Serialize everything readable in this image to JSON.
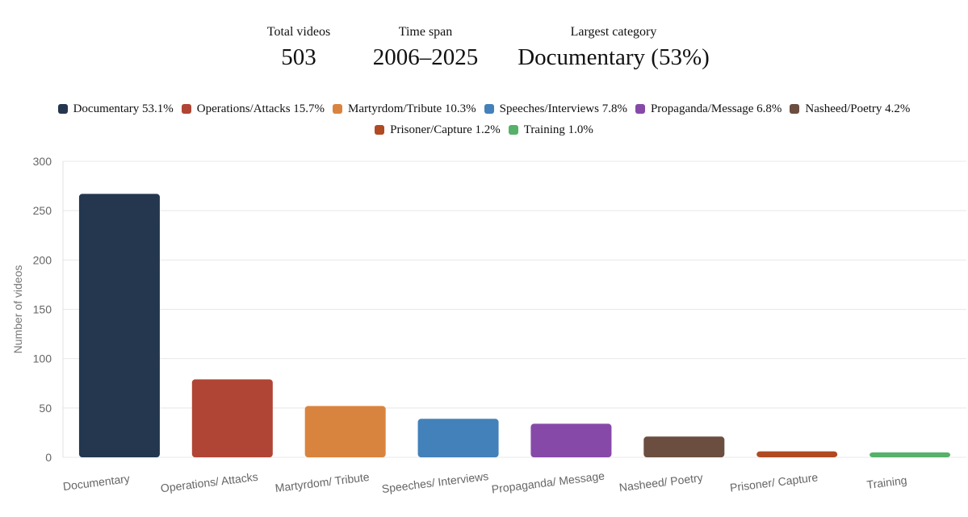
{
  "stats": {
    "total": {
      "label": "Total videos",
      "value": "503"
    },
    "span": {
      "label": "Time span",
      "value": "2006–2025"
    },
    "largest": {
      "label": "Largest category",
      "value": "Documentary (53%)"
    }
  },
  "legend": [
    {
      "label": "Documentary 53.1%",
      "color": "#24374f"
    },
    {
      "label": "Operations/Attacks 15.7%",
      "color": "#b04535"
    },
    {
      "label": "Martyrdom/Tribute 10.3%",
      "color": "#d9843e"
    },
    {
      "label": "Speeches/Interviews 7.8%",
      "color": "#4381ba"
    },
    {
      "label": "Propaganda/Message 6.8%",
      "color": "#8749a8"
    },
    {
      "label": "Nasheed/Poetry 4.2%",
      "color": "#6b4e40"
    },
    {
      "label": "Prisoner/Capture 1.2%",
      "color": "#b04a22"
    },
    {
      "label": "Training 1.0%",
      "color": "#56b169"
    }
  ],
  "chart_data": {
    "type": "bar",
    "categories": [
      "Documentary",
      "Operations/ Attacks",
      "Martyrdom/ Tribute",
      "Speeches/ Interviews",
      "Propaganda/ Message",
      "Nasheed/ Poetry",
      "Prisoner/ Capture",
      "Training"
    ],
    "values": [
      267,
      79,
      52,
      39,
      34,
      21,
      6,
      5
    ],
    "colors": [
      "#24374f",
      "#b04535",
      "#d9843e",
      "#4381ba",
      "#8749a8",
      "#6b4e40",
      "#b04a22",
      "#56b169"
    ],
    "ylabel": "Number of videos",
    "xlabel": "",
    "ylim": [
      0,
      300
    ],
    "yticks": [
      0,
      50,
      100,
      150,
      200,
      250,
      300
    ],
    "grid": true
  }
}
